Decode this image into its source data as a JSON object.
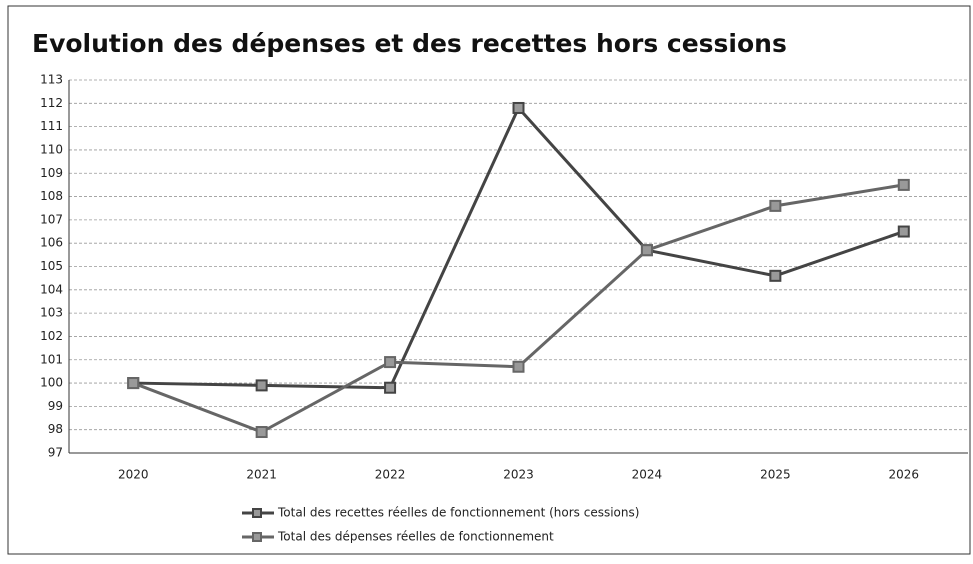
{
  "chart_data": {
    "type": "line",
    "title": "Evolution des dépenses et des recettes hors cessions",
    "categories": [
      "2020",
      "2021",
      "2022",
      "2023",
      "2024",
      "2025",
      "2026"
    ],
    "series": [
      {
        "name": "Total des recettes réelles de fonctionnement (hors cessions)",
        "color": "#444444",
        "values": [
          100,
          99.9,
          99.8,
          111.8,
          105.7,
          104.6,
          106.5
        ]
      },
      {
        "name": "Total des dépenses réelles de fonctionnement",
        "color": "#666666",
        "values": [
          100,
          97.9,
          100.9,
          100.7,
          105.7,
          107.6,
          108.5
        ]
      }
    ],
    "ylim": [
      97,
      113
    ],
    "yticks": [
      97,
      98,
      99,
      100,
      101,
      102,
      103,
      104,
      105,
      106,
      107,
      108,
      109,
      110,
      111,
      112,
      113
    ],
    "grid": true,
    "legend": "bottom"
  }
}
